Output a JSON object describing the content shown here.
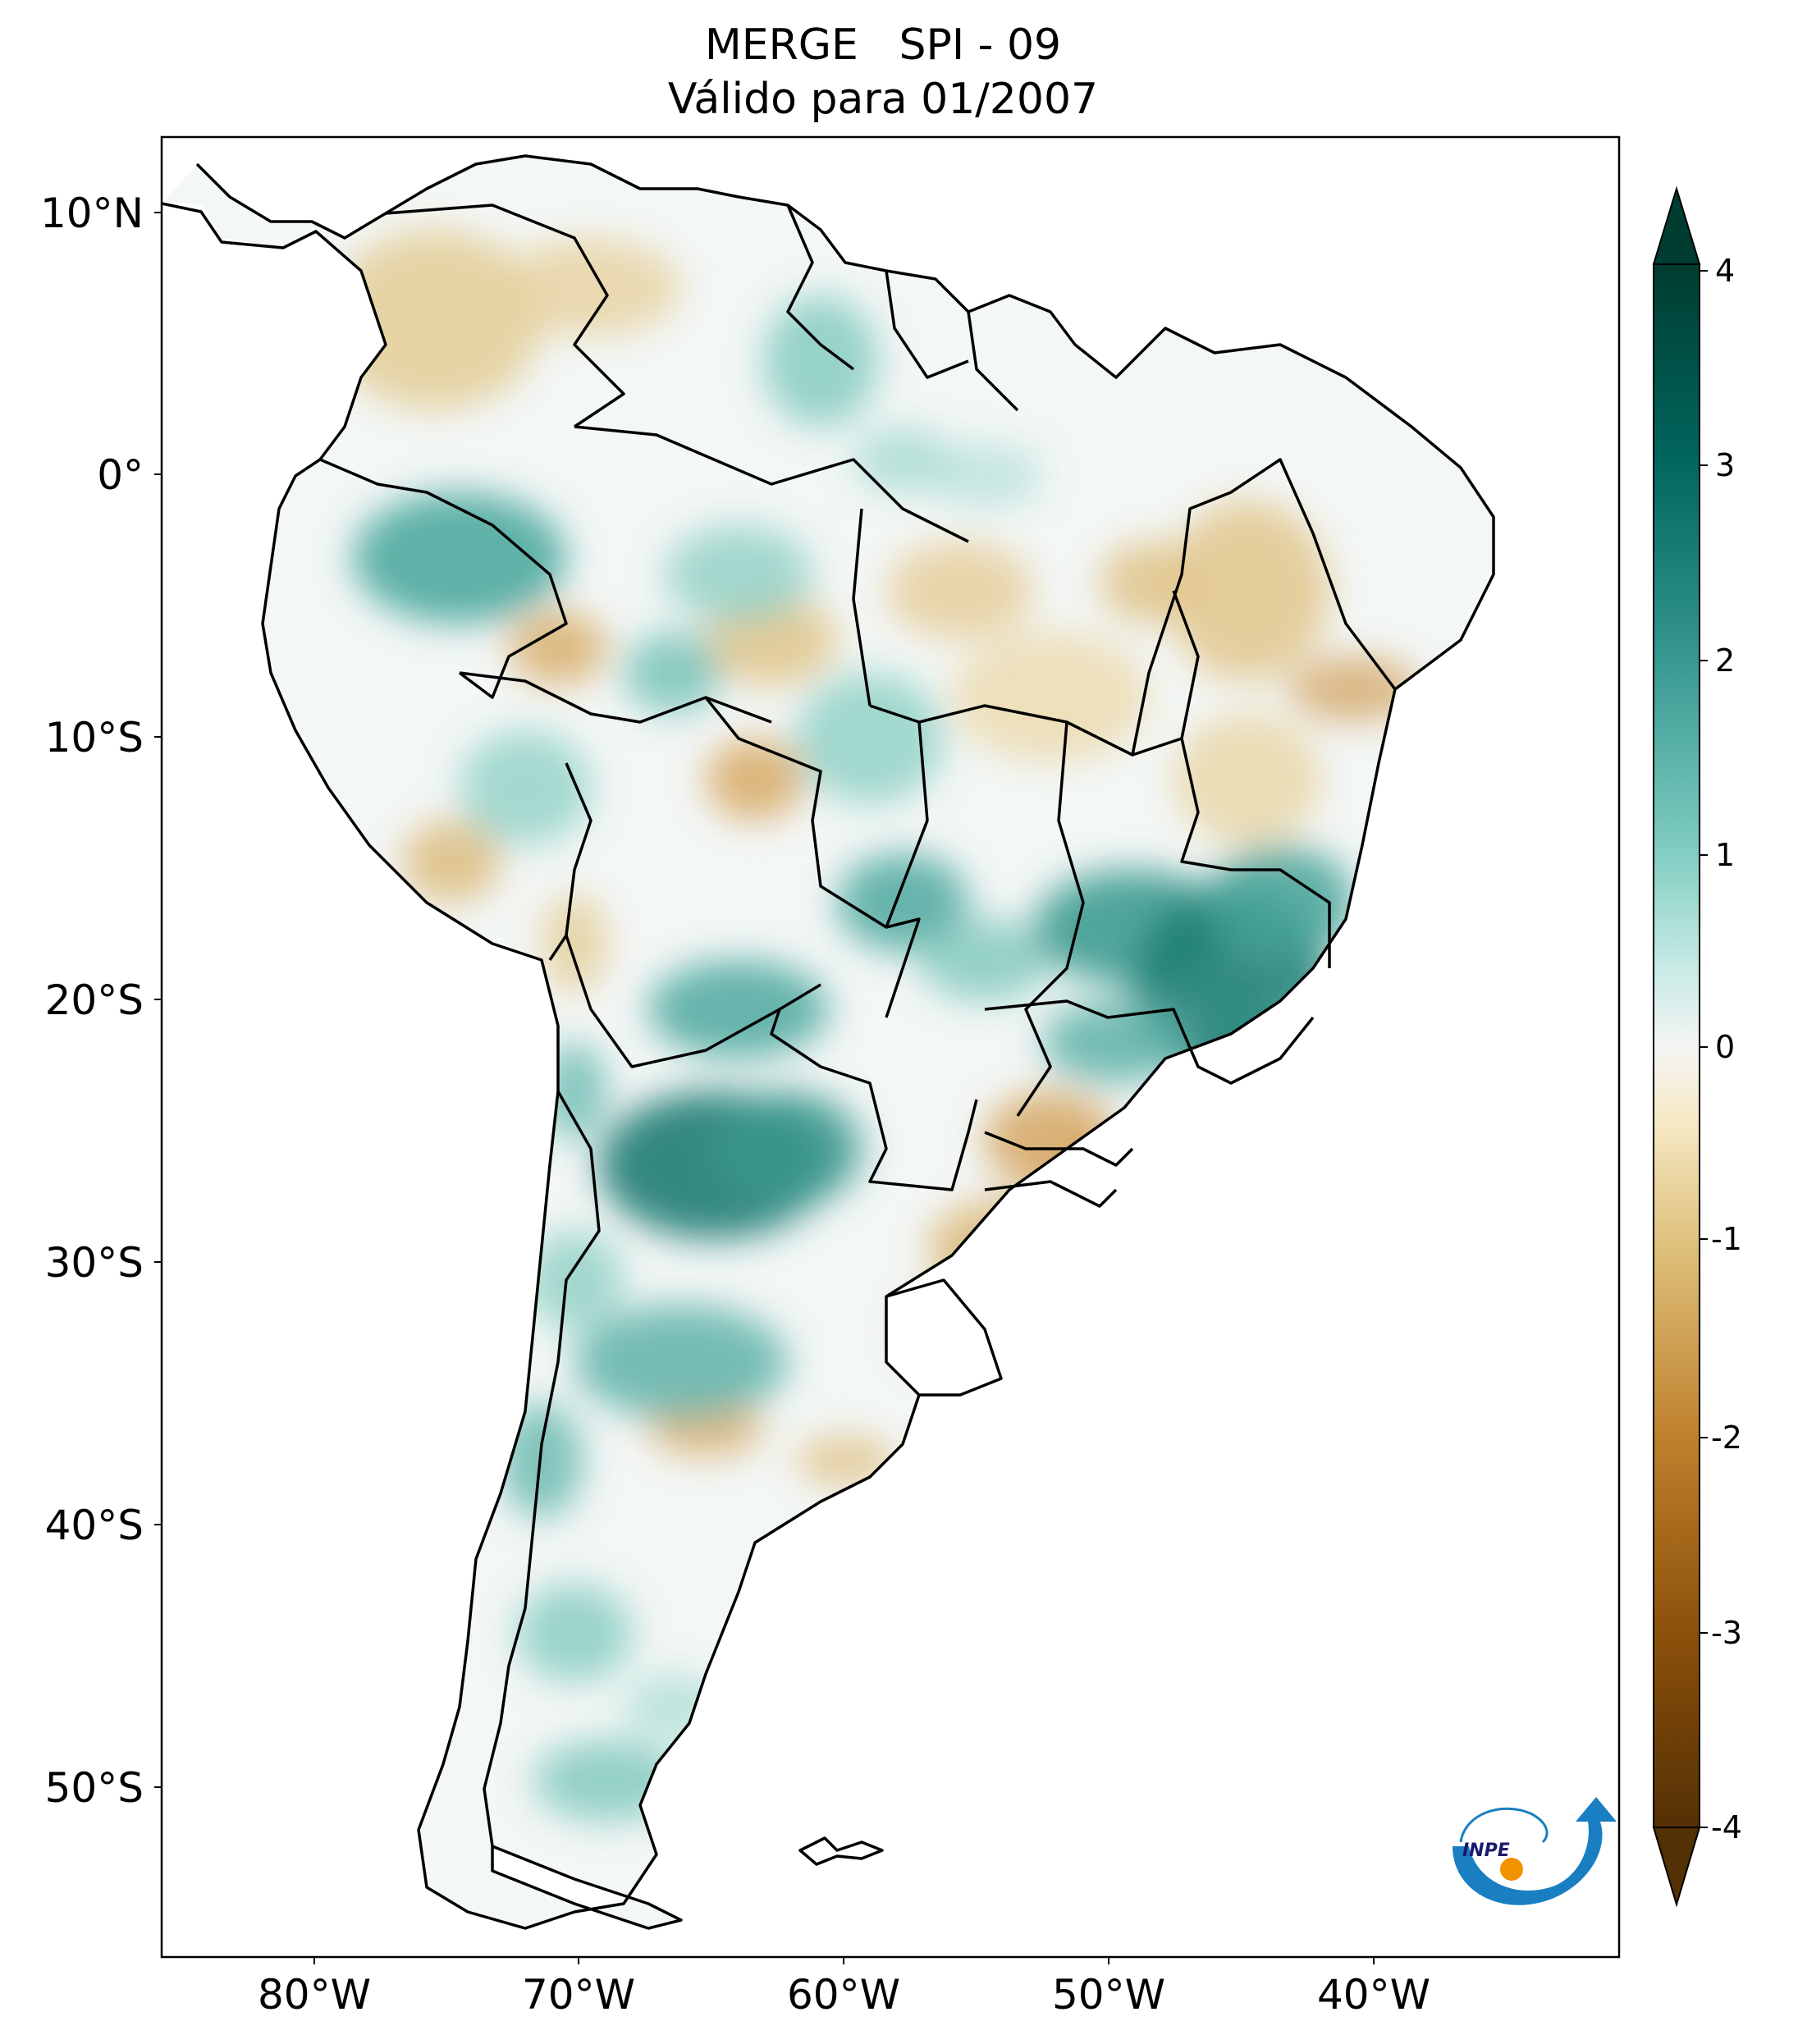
{
  "map": {
    "title_line1": "MERGE   SPI - 09",
    "title_line2": "Válido para 01/2007",
    "lat_labels": [
      "10°N",
      "0°",
      "10°S",
      "20°S",
      "30°S",
      "40°S",
      "50°S"
    ],
    "lon_labels": [
      "80°W",
      "70°W",
      "60°W",
      "50°W",
      "40°W"
    ],
    "extent": {
      "lon_min": -86,
      "lon_max": -31,
      "lat_min": -56,
      "lat_max": 13
    },
    "region": "South America",
    "variable": "SPI-9 (Standardized Precipitation Index, 9 months)"
  },
  "colorbar": {
    "ticks": [
      "4",
      "3",
      "2",
      "1",
      "0",
      "-1",
      "-2",
      "-3",
      "-4"
    ],
    "vmin": -4,
    "vmax": 4,
    "colormap": "BrBG",
    "colors": {
      "neg4": "#543005",
      "neg3": "#8c510a",
      "neg2": "#bf812d",
      "neg1": "#dfc27d",
      "neg05": "#f6e8c3",
      "zero": "#f5f5f5",
      "pos05": "#c7eae5",
      "pos1": "#80cdc1",
      "pos2": "#35978f",
      "pos3": "#01665e",
      "pos4": "#003c30"
    }
  },
  "logo": {
    "text": "INPE",
    "colors": {
      "arrow": "#1a7ec2",
      "dot": "#f39200"
    }
  }
}
